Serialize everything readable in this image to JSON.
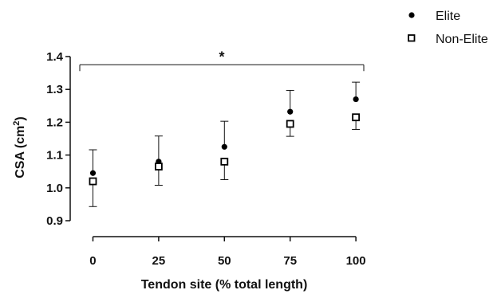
{
  "chart_data": {
    "type": "scatter",
    "x": [
      0,
      25,
      50,
      75,
      100
    ],
    "xlabel": "Tendon site (% total length)",
    "ylabel": "CSA (cm",
    "ylabel_sup": "2",
    "ylabel_close": ")",
    "xlim": [
      -5,
      103
    ],
    "ylim": [
      0.9,
      1.4
    ],
    "xticks": [
      "0",
      "25",
      "50",
      "75",
      "100"
    ],
    "yticks": [
      "0.9",
      "1.0",
      "1.1",
      "1.2",
      "1.3",
      "1.4"
    ],
    "grid": false,
    "legend_position": "top-right",
    "series": [
      {
        "name": "Elite",
        "marker": "filled-circle",
        "color": "#000000",
        "values": [
          1.045,
          1.08,
          1.125,
          1.232,
          1.27
        ],
        "error_upper": [
          1.116,
          1.158,
          1.203,
          1.297,
          1.322
        ]
      },
      {
        "name": "Non-Elite",
        "marker": "open-square",
        "color": "#000000",
        "values": [
          1.02,
          1.065,
          1.08,
          1.195,
          1.215
        ],
        "error_lower": [
          0.943,
          1.008,
          1.025,
          1.157,
          1.178
        ]
      }
    ],
    "annotation": {
      "text": "*",
      "type": "significance-bracket",
      "from_x": -5,
      "to_x": 103,
      "y": 1.375
    }
  }
}
